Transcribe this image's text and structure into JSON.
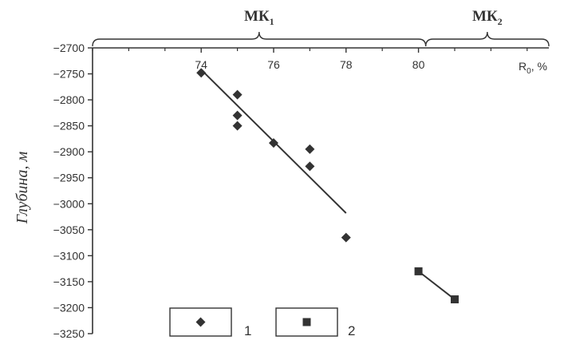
{
  "chart_data": {
    "type": "scatter",
    "ylabel": "Глубина, м",
    "xlabel": "R0, %",
    "xlim": [
      71.0,
      83.6
    ],
    "ylim": [
      -3250,
      -2700
    ],
    "x_ticks": [
      74,
      76,
      78,
      80
    ],
    "y_ticks": [
      -2700,
      -2750,
      -2800,
      -2850,
      -2900,
      -2950,
      -3000,
      -3050,
      -3100,
      -3150,
      -3200,
      -3250
    ],
    "x_axis_position": "top",
    "grid": false,
    "zones": [
      {
        "label_main": "МК",
        "label_sub": "1",
        "x_from": 71.0,
        "x_to": 80.2
      },
      {
        "label_main": "МК",
        "label_sub": "2",
        "x_from": 80.2,
        "x_to": 83.6
      }
    ],
    "series": [
      {
        "name": "1",
        "marker": "diamond",
        "points": [
          {
            "x": 74.0,
            "y": -2748
          },
          {
            "x": 75.0,
            "y": -2790
          },
          {
            "x": 75.0,
            "y": -2830
          },
          {
            "x": 75.0,
            "y": -2850
          },
          {
            "x": 76.0,
            "y": -2883
          },
          {
            "x": 77.0,
            "y": -2895
          },
          {
            "x": 77.0,
            "y": -2928
          },
          {
            "x": 78.0,
            "y": -3065
          }
        ],
        "trend": {
          "x": [
            74.0,
            78.0
          ],
          "y": [
            -2742,
            -3018
          ]
        }
      },
      {
        "name": "2",
        "marker": "square",
        "points": [
          {
            "x": 80.0,
            "y": -3130
          },
          {
            "x": 81.0,
            "y": -3184
          }
        ],
        "trend": {
          "x": [
            80.0,
            81.0
          ],
          "y": [
            -3130,
            -3184
          ]
        }
      }
    ],
    "legend_position": "bottom-center",
    "colors": {
      "ink": "#333333",
      "background": "#ffffff"
    }
  }
}
